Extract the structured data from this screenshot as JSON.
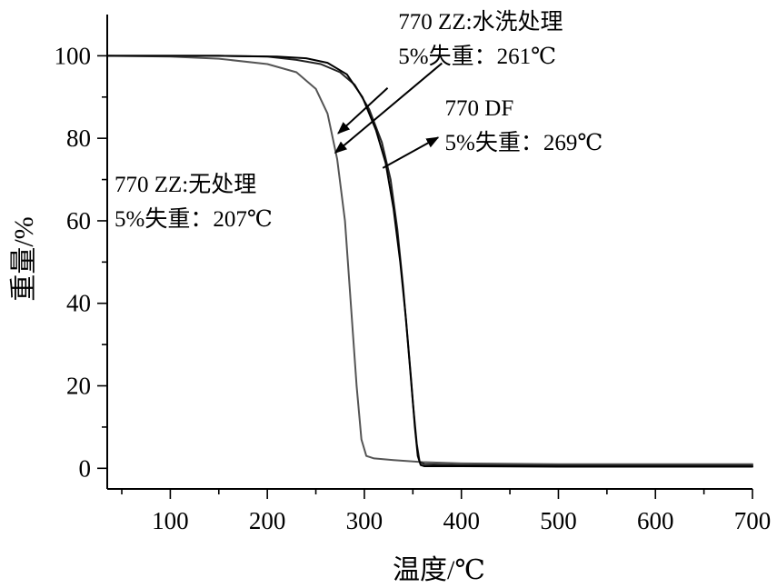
{
  "chart_data": {
    "type": "line",
    "title": "",
    "xlabel": "温度/℃",
    "ylabel": "重量/%",
    "xlim": [
      35,
      700
    ],
    "ylim": [
      -5,
      110
    ],
    "x_ticks": [
      100,
      200,
      300,
      400,
      500,
      600,
      700
    ],
    "y_ticks": [
      0,
      20,
      40,
      60,
      80,
      100
    ],
    "grid": false,
    "series": [
      {
        "color": "#555555",
        "points": [
          [
            35,
            100
          ],
          [
            100,
            99.8
          ],
          [
            150,
            99.3
          ],
          [
            200,
            98
          ],
          [
            230,
            96
          ],
          [
            250,
            92
          ],
          [
            262,
            86
          ],
          [
            272,
            75
          ],
          [
            280,
            60
          ],
          [
            286,
            40
          ],
          [
            292,
            20
          ],
          [
            297,
            7
          ],
          [
            302,
            3
          ],
          [
            310,
            2.4
          ],
          [
            330,
            2
          ],
          [
            360,
            1.5
          ],
          [
            400,
            1.2
          ],
          [
            500,
            1
          ],
          [
            700,
            1
          ]
        ]
      },
      {
        "color": "#222222",
        "points": [
          [
            35,
            100
          ],
          [
            150,
            100
          ],
          [
            200,
            99.8
          ],
          [
            230,
            99
          ],
          [
            255,
            98
          ],
          [
            275,
            96
          ],
          [
            290,
            93
          ],
          [
            305,
            87
          ],
          [
            318,
            79
          ],
          [
            327,
            70
          ],
          [
            334,
            58
          ],
          [
            340,
            44
          ],
          [
            345,
            30
          ],
          [
            350,
            16
          ],
          [
            354,
            6
          ],
          [
            357,
            1.5
          ],
          [
            362,
            1
          ],
          [
            400,
            0.8
          ],
          [
            500,
            0.7
          ],
          [
            700,
            0.7
          ]
        ]
      },
      {
        "color": "#000000",
        "points": [
          [
            35,
            100
          ],
          [
            150,
            100
          ],
          [
            210,
            99.8
          ],
          [
            240,
            99.4
          ],
          [
            262,
            98.3
          ],
          [
            282,
            95.5
          ],
          [
            298,
            90
          ],
          [
            312,
            82
          ],
          [
            322,
            74
          ],
          [
            330,
            63
          ],
          [
            337,
            50
          ],
          [
            343,
            36
          ],
          [
            348,
            22
          ],
          [
            352,
            10
          ],
          [
            355,
            3
          ],
          [
            358,
            0.8
          ],
          [
            362,
            0.5
          ],
          [
            400,
            0.5
          ],
          [
            500,
            0.4
          ],
          [
            700,
            0.4
          ]
        ]
      }
    ],
    "annotations": [
      {
        "lines": [
          "770 ZZ:水洗处理",
          "5%失重：261℃"
        ],
        "text_at": [
          335,
          106.5
        ],
        "arrow_from": [
          324,
          92.2
        ],
        "arrow_to": [
          273,
          81.2
        ]
      },
      {
        "lines": [
          "770 DF",
          "5%失重：269℃"
        ],
        "text_at": [
          383,
          85.5
        ],
        "arrow_from": [
          319,
          72.8
        ],
        "arrow_to": [
          376,
          80.2
        ]
      },
      {
        "lines": [
          "770 ZZ:无处理",
          "5%失重：207℃"
        ],
        "text_at": [
          35,
          67
        ],
        "arrow_from": [
          380,
          98.2
        ],
        "arrow_to": [
          270,
          76.5
        ]
      }
    ]
  }
}
